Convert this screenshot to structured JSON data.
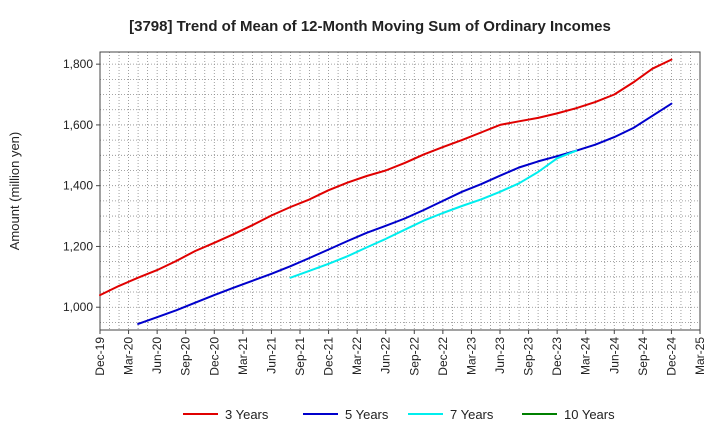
{
  "chart_data": {
    "type": "line",
    "title": "[3798]  Trend of Mean of 12-Month Moving Sum of Ordinary Incomes",
    "xlabel": "",
    "ylabel": "Amount (million yen)",
    "ylim": [
      925,
      1840
    ],
    "y_ticks": [
      1000,
      1200,
      1400,
      1600,
      1800
    ],
    "y_tick_labels": [
      "1,000",
      "1,200",
      "1,400",
      "1,600",
      "1,800"
    ],
    "x_tick_labels": [
      "Dec-19",
      "Mar-20",
      "Jun-20",
      "Sep-20",
      "Dec-20",
      "Mar-21",
      "Jun-21",
      "Sep-21",
      "Dec-21",
      "Mar-22",
      "Jun-22",
      "Sep-22",
      "Dec-22",
      "Mar-23",
      "Jun-23",
      "Sep-23",
      "Dec-23",
      "Mar-24",
      "Jun-24",
      "Sep-24",
      "Dec-24",
      "Mar-25"
    ],
    "grid": true,
    "legend_position": "bottom",
    "series": [
      {
        "name": "3 Years",
        "color": "#e00000",
        "start_index": 0,
        "values": [
          1040,
          1070,
          1097,
          1122,
          1152,
          1185,
          1212,
          1240,
          1270,
          1302,
          1330,
          1355,
          1385,
          1410,
          1432,
          1450,
          1475,
          1503,
          1527,
          1550,
          1575,
          1600,
          1612,
          1623,
          1638,
          1655,
          1675,
          1700,
          1740,
          1785,
          1815
        ]
      },
      {
        "name": "5 Years",
        "color": "#0000cc",
        "start_index": 2,
        "values": [
          945,
          967,
          990,
          1015,
          1040,
          1064,
          1087,
          1110,
          1135,
          1162,
          1190,
          1218,
          1245,
          1268,
          1292,
          1320,
          1350,
          1380,
          1405,
          1433,
          1460,
          1480,
          1497,
          1515,
          1535,
          1560,
          1590,
          1630,
          1670
        ]
      },
      {
        "name": "7 Years",
        "color": "#00eeee",
        "start_index": 10,
        "values": [
          1097,
          1120,
          1143,
          1168,
          1197,
          1225,
          1255,
          1285,
          1310,
          1333,
          1355,
          1380,
          1408,
          1445,
          1490,
          1515
        ]
      },
      {
        "name": "10 Years",
        "color": "#008000",
        "start_index": 0,
        "values": []
      }
    ]
  }
}
